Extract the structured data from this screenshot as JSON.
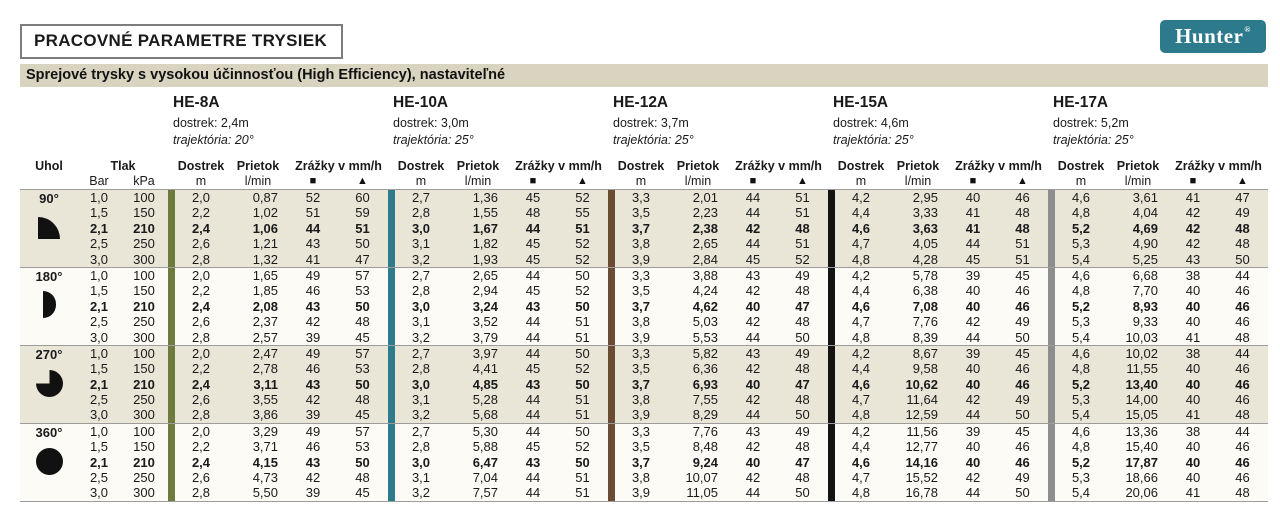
{
  "page": {
    "title": "PRACOVNÉ PARAMETRE TRYSIEK",
    "subtitle": "Sprejové trysky s vysokou účinnosťou (High Efficiency), nastaviteľné",
    "logo": "Hunter",
    "logo_reg": "®",
    "logo_color": "#2e7a8d"
  },
  "columns": {
    "angle": "Uhol",
    "pressure": "Tlak",
    "pressure_units": [
      "Bar",
      "kPa"
    ],
    "dostrek": "Dostrek",
    "dostrek_unit": "m",
    "prietok": "Prietok",
    "prietok_unit": "l/min",
    "zrazky": "Zrážky v mm/h",
    "zrazky_units": [
      "■",
      "▲"
    ]
  },
  "models": [
    {
      "name": "HE-8A",
      "dostrek": "dostrek: 2,4m",
      "trajektoria": "trajektória: 20°",
      "bar_color": "#6e7b3f"
    },
    {
      "name": "HE-10A",
      "dostrek": "dostrek: 3,0m",
      "trajektoria": "trajektória: 25°",
      "bar_color": "#2e7b8c"
    },
    {
      "name": "HE-12A",
      "dostrek": "dostrek: 3,7m",
      "trajektoria": "trajektória: 25°",
      "bar_color": "#6a4b33"
    },
    {
      "name": "HE-15A",
      "dostrek": "dostrek: 4,6m",
      "trajektoria": "trajektória: 25°",
      "bar_color": "#131313"
    },
    {
      "name": "HE-17A",
      "dostrek": "dostrek: 5,2m",
      "trajektoria": "trajektória: 25°",
      "bar_color": "#8e8e8e"
    }
  ],
  "groups": [
    {
      "angle": "90°",
      "icon": "quarter-circle-icon",
      "shaded": true,
      "rows": [
        {
          "bar": "1,0",
          "kpa": "100",
          "bold": false,
          "models": [
            [
              "2,0",
              "0,87",
              "52",
              "60"
            ],
            [
              "2,7",
              "1,36",
              "45",
              "52"
            ],
            [
              "3,3",
              "2,01",
              "44",
              "51"
            ],
            [
              "4,2",
              "2,95",
              "40",
              "46"
            ],
            [
              "4,6",
              "3,61",
              "41",
              "47"
            ]
          ]
        },
        {
          "bar": "1,5",
          "kpa": "150",
          "bold": false,
          "models": [
            [
              "2,2",
              "1,02",
              "51",
              "59"
            ],
            [
              "2,8",
              "1,55",
              "48",
              "55"
            ],
            [
              "3,5",
              "2,23",
              "44",
              "51"
            ],
            [
              "4,4",
              "3,33",
              "41",
              "48"
            ],
            [
              "4,8",
              "4,04",
              "42",
              "49"
            ]
          ]
        },
        {
          "bar": "2,1",
          "kpa": "210",
          "bold": true,
          "models": [
            [
              "2,4",
              "1,06",
              "44",
              "51"
            ],
            [
              "3,0",
              "1,67",
              "44",
              "51"
            ],
            [
              "3,7",
              "2,38",
              "42",
              "48"
            ],
            [
              "4,6",
              "3,63",
              "41",
              "48"
            ],
            [
              "5,2",
              "4,69",
              "42",
              "48"
            ]
          ]
        },
        {
          "bar": "2,5",
          "kpa": "250",
          "bold": false,
          "models": [
            [
              "2,6",
              "1,21",
              "43",
              "50"
            ],
            [
              "3,1",
              "1,82",
              "45",
              "52"
            ],
            [
              "3,8",
              "2,65",
              "44",
              "51"
            ],
            [
              "4,7",
              "4,05",
              "44",
              "51"
            ],
            [
              "5,3",
              "4,90",
              "42",
              "48"
            ]
          ]
        },
        {
          "bar": "3,0",
          "kpa": "300",
          "bold": false,
          "models": [
            [
              "2,8",
              "1,32",
              "41",
              "47"
            ],
            [
              "3,2",
              "1,93",
              "45",
              "52"
            ],
            [
              "3,9",
              "2,84",
              "45",
              "52"
            ],
            [
              "4,8",
              "4,28",
              "45",
              "51"
            ],
            [
              "5,4",
              "5,25",
              "43",
              "50"
            ]
          ]
        }
      ]
    },
    {
      "angle": "180°",
      "icon": "half-circle-icon",
      "shaded": false,
      "rows": [
        {
          "bar": "1,0",
          "kpa": "100",
          "bold": false,
          "models": [
            [
              "2,0",
              "1,65",
              "49",
              "57"
            ],
            [
              "2,7",
              "2,65",
              "44",
              "50"
            ],
            [
              "3,3",
              "3,88",
              "43",
              "49"
            ],
            [
              "4,2",
              "5,78",
              "39",
              "45"
            ],
            [
              "4,6",
              "6,68",
              "38",
              "44"
            ]
          ]
        },
        {
          "bar": "1,5",
          "kpa": "150",
          "bold": false,
          "models": [
            [
              "2,2",
              "1,85",
              "46",
              "53"
            ],
            [
              "2,8",
              "2,94",
              "45",
              "52"
            ],
            [
              "3,5",
              "4,24",
              "42",
              "48"
            ],
            [
              "4,4",
              "6,38",
              "40",
              "46"
            ],
            [
              "4,8",
              "7,70",
              "40",
              "46"
            ]
          ]
        },
        {
          "bar": "2,1",
          "kpa": "210",
          "bold": true,
          "models": [
            [
              "2,4",
              "2,08",
              "43",
              "50"
            ],
            [
              "3,0",
              "3,24",
              "43",
              "50"
            ],
            [
              "3,7",
              "4,62",
              "40",
              "47"
            ],
            [
              "4,6",
              "7,08",
              "40",
              "46"
            ],
            [
              "5,2",
              "8,93",
              "40",
              "46"
            ]
          ]
        },
        {
          "bar": "2,5",
          "kpa": "250",
          "bold": false,
          "models": [
            [
              "2,6",
              "2,37",
              "42",
              "48"
            ],
            [
              "3,1",
              "3,52",
              "44",
              "51"
            ],
            [
              "3,8",
              "5,03",
              "42",
              "48"
            ],
            [
              "4,7",
              "7,76",
              "42",
              "49"
            ],
            [
              "5,3",
              "9,33",
              "40",
              "46"
            ]
          ]
        },
        {
          "bar": "3,0",
          "kpa": "300",
          "bold": false,
          "models": [
            [
              "2,8",
              "2,57",
              "39",
              "45"
            ],
            [
              "3,2",
              "3,79",
              "44",
              "51"
            ],
            [
              "3,9",
              "5,53",
              "44",
              "50"
            ],
            [
              "4,8",
              "8,39",
              "44",
              "50"
            ],
            [
              "5,4",
              "10,03",
              "41",
              "48"
            ]
          ]
        }
      ]
    },
    {
      "angle": "270°",
      "icon": "three-quarter-circle-icon",
      "shaded": true,
      "rows": [
        {
          "bar": "1,0",
          "kpa": "100",
          "bold": false,
          "models": [
            [
              "2,0",
              "2,47",
              "49",
              "57"
            ],
            [
              "2,7",
              "3,97",
              "44",
              "50"
            ],
            [
              "3,3",
              "5,82",
              "43",
              "49"
            ],
            [
              "4,2",
              "8,67",
              "39",
              "45"
            ],
            [
              "4,6",
              "10,02",
              "38",
              "44"
            ]
          ]
        },
        {
          "bar": "1,5",
          "kpa": "150",
          "bold": false,
          "models": [
            [
              "2,2",
              "2,78",
              "46",
              "53"
            ],
            [
              "2,8",
              "4,41",
              "45",
              "52"
            ],
            [
              "3,5",
              "6,36",
              "42",
              "48"
            ],
            [
              "4,4",
              "9,58",
              "40",
              "46"
            ],
            [
              "4,8",
              "11,55",
              "40",
              "46"
            ]
          ]
        },
        {
          "bar": "2,1",
          "kpa": "210",
          "bold": true,
          "models": [
            [
              "2,4",
              "3,11",
              "43",
              "50"
            ],
            [
              "3,0",
              "4,85",
              "43",
              "50"
            ],
            [
              "3,7",
              "6,93",
              "40",
              "47"
            ],
            [
              "4,6",
              "10,62",
              "40",
              "46"
            ],
            [
              "5,2",
              "13,40",
              "40",
              "46"
            ]
          ]
        },
        {
          "bar": "2,5",
          "kpa": "250",
          "bold": false,
          "models": [
            [
              "2,6",
              "3,55",
              "42",
              "48"
            ],
            [
              "3,1",
              "5,28",
              "44",
              "51"
            ],
            [
              "3,8",
              "7,55",
              "42",
              "48"
            ],
            [
              "4,7",
              "11,64",
              "42",
              "49"
            ],
            [
              "5,3",
              "14,00",
              "40",
              "46"
            ]
          ]
        },
        {
          "bar": "3,0",
          "kpa": "300",
          "bold": false,
          "models": [
            [
              "2,8",
              "3,86",
              "39",
              "45"
            ],
            [
              "3,2",
              "5,68",
              "44",
              "51"
            ],
            [
              "3,9",
              "8,29",
              "44",
              "50"
            ],
            [
              "4,8",
              "12,59",
              "44",
              "50"
            ],
            [
              "5,4",
              "15,05",
              "41",
              "48"
            ]
          ]
        }
      ]
    },
    {
      "angle": "360°",
      "icon": "full-circle-icon",
      "shaded": false,
      "rows": [
        {
          "bar": "1,0",
          "kpa": "100",
          "bold": false,
          "models": [
            [
              "2,0",
              "3,29",
              "49",
              "57"
            ],
            [
              "2,7",
              "5,30",
              "44",
              "50"
            ],
            [
              "3,3",
              "7,76",
              "43",
              "49"
            ],
            [
              "4,2",
              "11,56",
              "39",
              "45"
            ],
            [
              "4,6",
              "13,36",
              "38",
              "44"
            ]
          ]
        },
        {
          "bar": "1,5",
          "kpa": "150",
          "bold": false,
          "models": [
            [
              "2,2",
              "3,71",
              "46",
              "53"
            ],
            [
              "2,8",
              "5,88",
              "45",
              "52"
            ],
            [
              "3,5",
              "8,48",
              "42",
              "48"
            ],
            [
              "4,4",
              "12,77",
              "40",
              "46"
            ],
            [
              "4,8",
              "15,40",
              "40",
              "46"
            ]
          ]
        },
        {
          "bar": "2,1",
          "kpa": "210",
          "bold": true,
          "models": [
            [
              "2,4",
              "4,15",
              "43",
              "50"
            ],
            [
              "3,0",
              "6,47",
              "43",
              "50"
            ],
            [
              "3,7",
              "9,24",
              "40",
              "47"
            ],
            [
              "4,6",
              "14,16",
              "40",
              "46"
            ],
            [
              "5,2",
              "17,87",
              "40",
              "46"
            ]
          ]
        },
        {
          "bar": "2,5",
          "kpa": "250",
          "bold": false,
          "models": [
            [
              "2,6",
              "4,73",
              "42",
              "48"
            ],
            [
              "3,1",
              "7,04",
              "44",
              "51"
            ],
            [
              "3,8",
              "10,07",
              "42",
              "48"
            ],
            [
              "4,7",
              "15,52",
              "42",
              "49"
            ],
            [
              "5,3",
              "18,66",
              "40",
              "46"
            ]
          ]
        },
        {
          "bar": "3,0",
          "kpa": "300",
          "bold": false,
          "models": [
            [
              "2,8",
              "5,50",
              "39",
              "45"
            ],
            [
              "3,2",
              "7,57",
              "44",
              "51"
            ],
            [
              "3,9",
              "11,05",
              "44",
              "50"
            ],
            [
              "4,8",
              "16,78",
              "44",
              "50"
            ],
            [
              "5,4",
              "20,06",
              "41",
              "48"
            ]
          ]
        }
      ]
    }
  ]
}
